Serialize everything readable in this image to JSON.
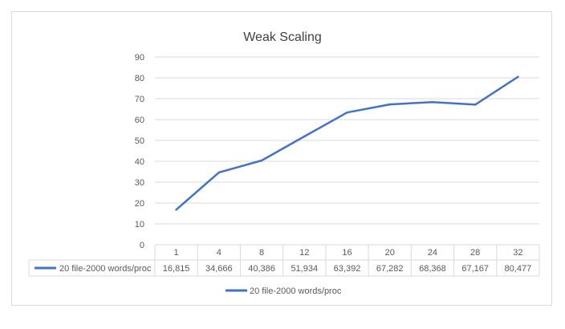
{
  "chart_data": {
    "type": "line",
    "title": "Weak Scaling",
    "xlabel": "",
    "ylabel": "",
    "ylim": [
      0,
      90
    ],
    "ytick_step": 10,
    "grid": true,
    "legend_position": "bottom",
    "data_table": true,
    "categories": [
      "1",
      "4",
      "8",
      "12",
      "16",
      "20",
      "24",
      "28",
      "32"
    ],
    "series": [
      {
        "name": "20 file-2000 words/proc",
        "color": "#4472c4",
        "values": [
          16.815,
          34.666,
          40.386,
          51.934,
          63.392,
          67.282,
          68.368,
          67.167,
          80.477
        ],
        "value_labels": [
          "16,815",
          "34,666",
          "40,386",
          "51,934",
          "63,392",
          "67,282",
          "68,368",
          "67,167",
          "80,477"
        ]
      }
    ]
  }
}
